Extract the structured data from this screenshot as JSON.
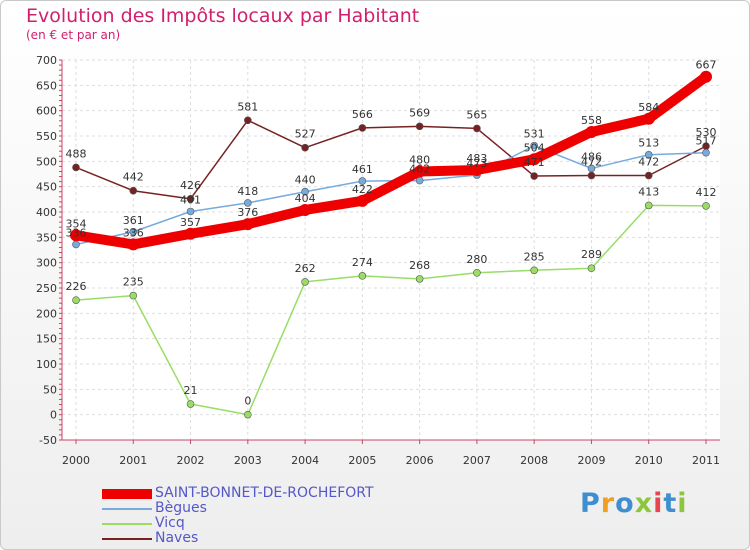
{
  "header": {
    "title": "Evolution des Impôts locaux par Habitant",
    "subtitle": "(en € et par an)"
  },
  "logo": {
    "text": "Proxiti"
  },
  "chart_data": {
    "type": "line",
    "title": "Evolution des Impôts locaux par Habitant",
    "subtitle": "(en € et par an)",
    "xlabel": "",
    "ylabel": "",
    "x": [
      "2000",
      "2001",
      "2002",
      "2003",
      "2004",
      "2005",
      "2006",
      "2007",
      "2008",
      "2009",
      "2010",
      "2011"
    ],
    "ylim": [
      -50,
      700
    ],
    "yticks": [
      -50,
      0,
      50,
      100,
      150,
      200,
      250,
      300,
      350,
      400,
      450,
      500,
      550,
      600,
      650,
      700
    ],
    "grid": true,
    "legend_position": "bottom-left",
    "series": [
      {
        "name": "SAINT-BONNET-DE-ROCHEFORT",
        "color": "#ee0000",
        "values": [
          354,
          336,
          357,
          376,
          404,
          422,
          480,
          483,
          504,
          558,
          584,
          667
        ],
        "labels": [
          "354",
          "336",
          "357",
          "376",
          "404",
          "422",
          "480",
          "483",
          "504",
          "558",
          "584",
          "667"
        ]
      },
      {
        "name": "Bègues",
        "color": "#77aadd",
        "values": [
          336,
          361,
          401,
          418,
          440,
          461,
          462,
          473,
          531,
          486,
          513,
          517
        ],
        "labels": [
          "336",
          "361",
          "401",
          "418",
          "440",
          "461",
          "462",
          "473",
          "531",
          "486",
          "513",
          "517"
        ]
      },
      {
        "name": "Vicq",
        "color": "#99dd66",
        "values": [
          226,
          235,
          21,
          0,
          262,
          274,
          268,
          280,
          285,
          289,
          413,
          412
        ],
        "labels": [
          "226",
          "235",
          "21",
          "0",
          "262",
          "274",
          "268",
          "280",
          "285",
          "289",
          "413",
          "412"
        ]
      },
      {
        "name": "Naves",
        "color": "#772222",
        "values": [
          488,
          442,
          426,
          581,
          527,
          566,
          569,
          565,
          471,
          472,
          472,
          530
        ],
        "labels": [
          "488",
          "442",
          "426",
          "581",
          "527",
          "566",
          "569",
          "565",
          "471",
          "472",
          "472",
          "530"
        ]
      }
    ]
  }
}
